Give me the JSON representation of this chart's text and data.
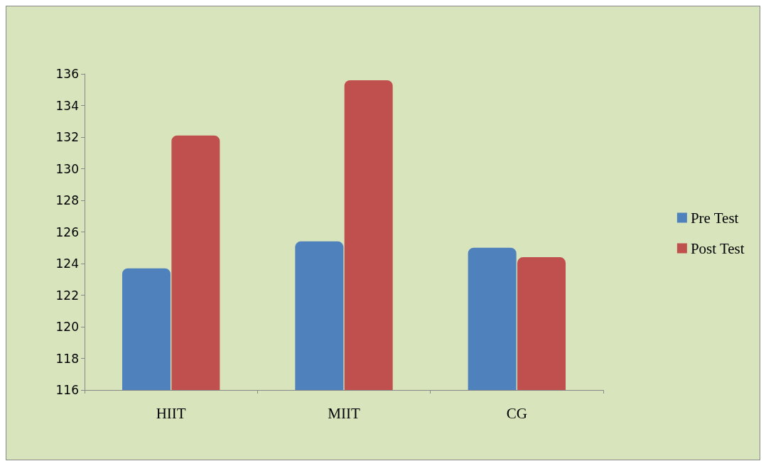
{
  "chart_data": {
    "type": "bar",
    "categories": [
      "HIIT",
      "MIIT",
      "CG"
    ],
    "series": [
      {
        "name": "Pre Test",
        "color": "#4f81bd",
        "values": [
          123.7,
          125.4,
          125
        ]
      },
      {
        "name": "Post Test",
        "color": "#c0504d",
        "values": [
          132.1,
          135.6,
          124.4
        ]
      }
    ],
    "ylim": [
      116,
      136
    ],
    "yticks": [
      116,
      118,
      120,
      122,
      124,
      126,
      128,
      130,
      132,
      134,
      136
    ],
    "grid": false,
    "legend": "right"
  }
}
